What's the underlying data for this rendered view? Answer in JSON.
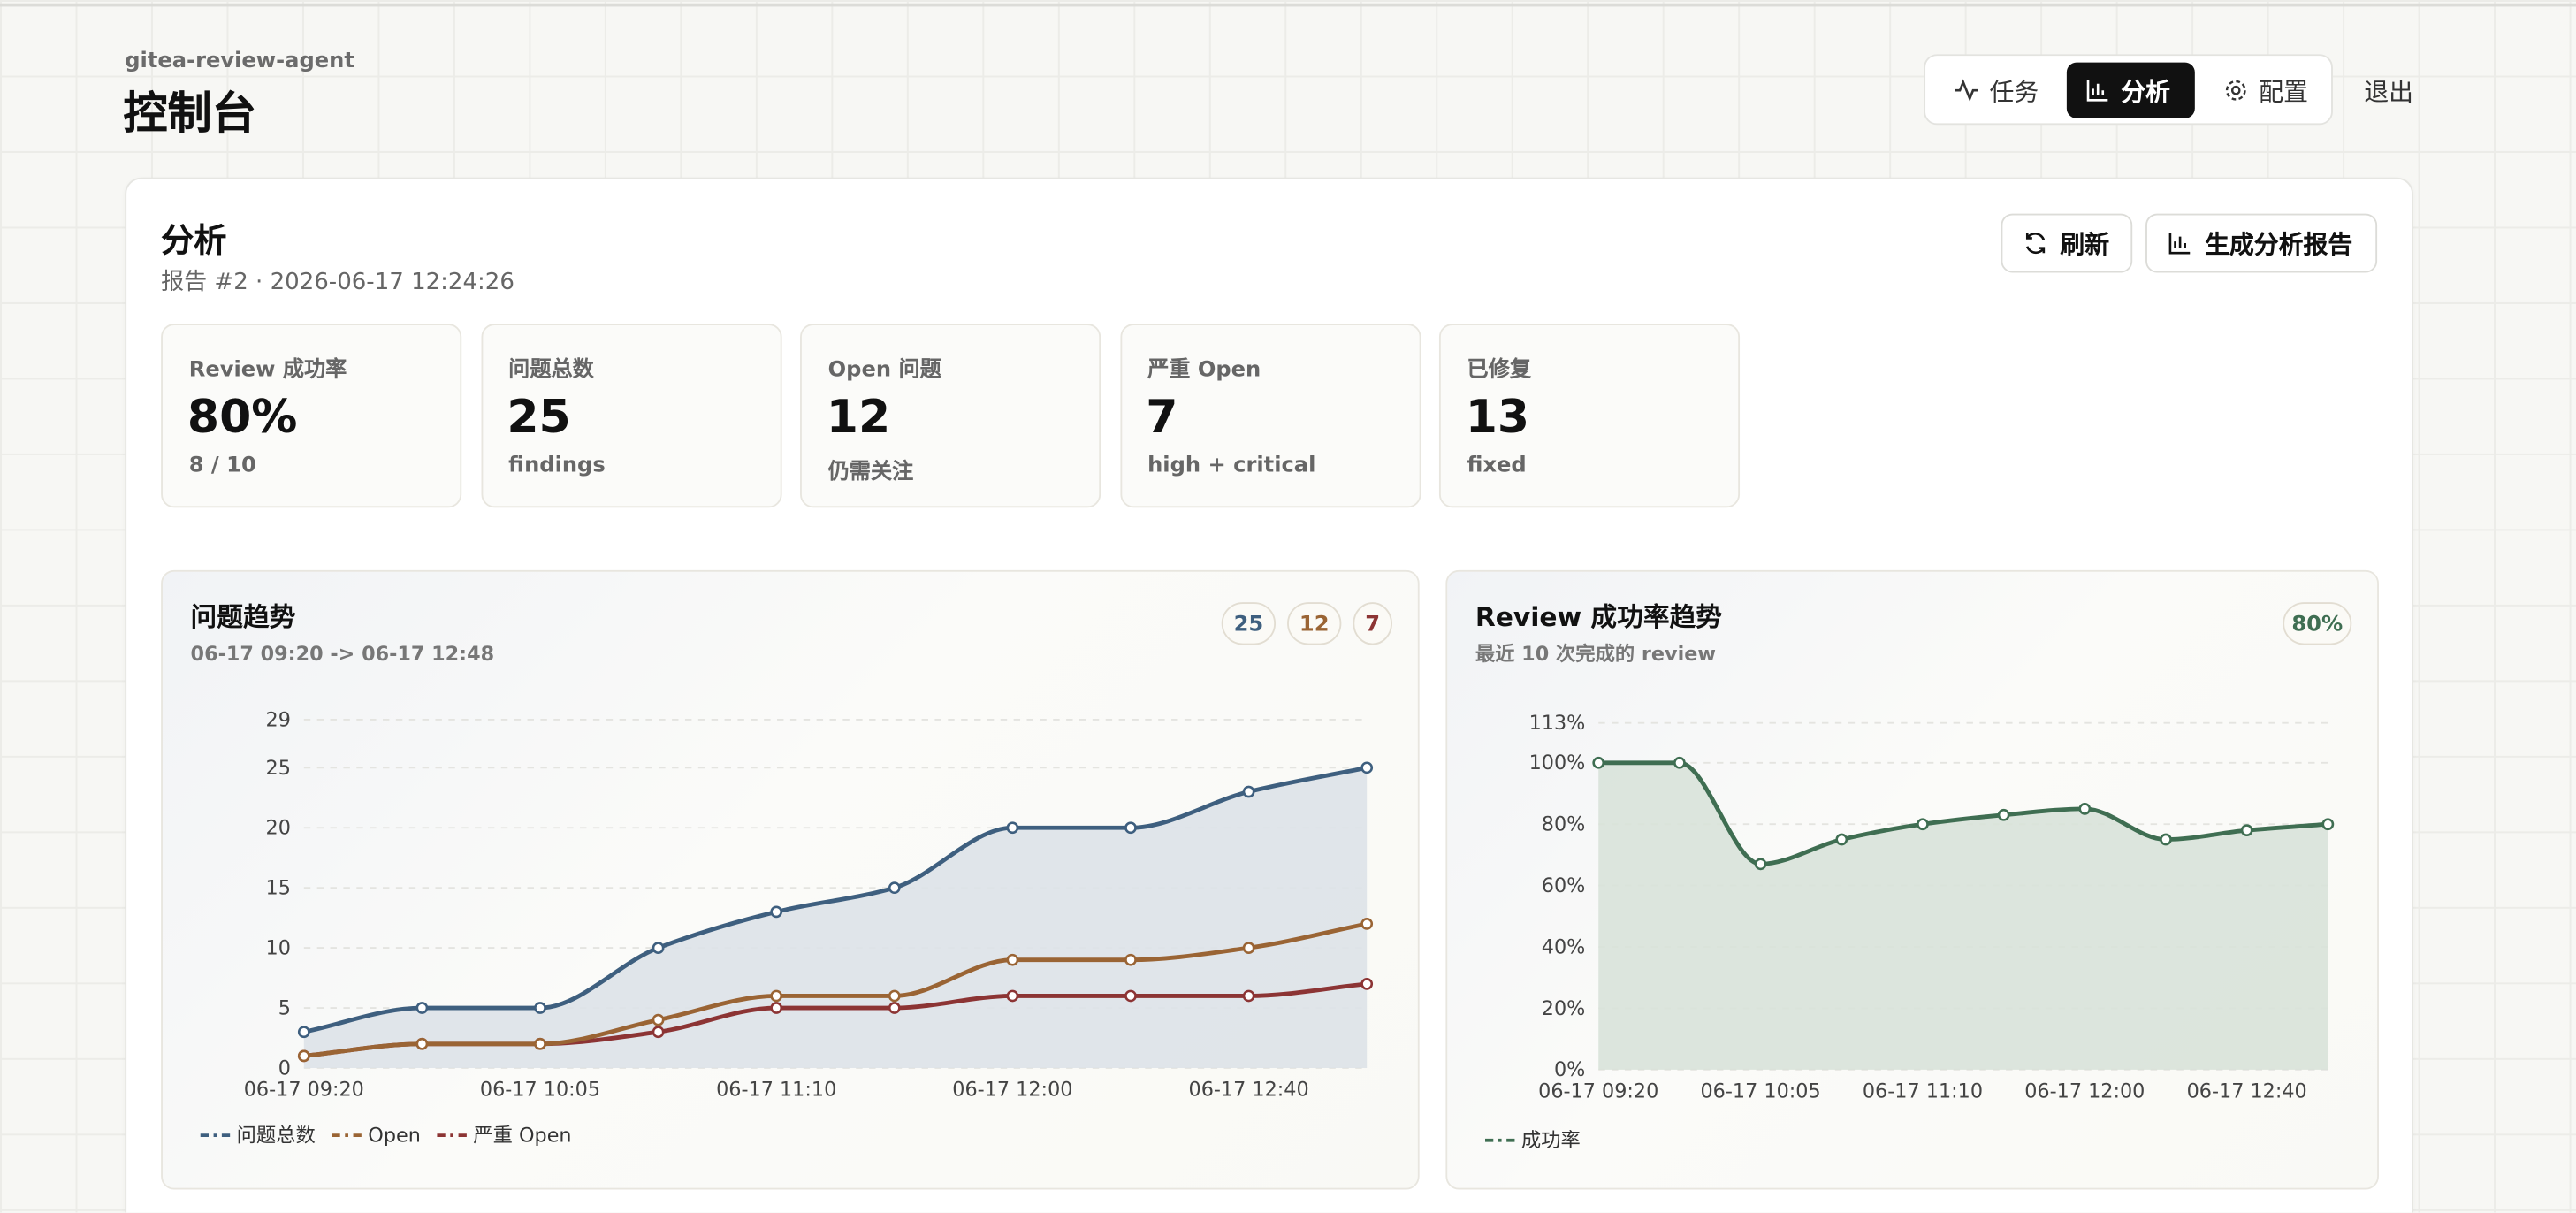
{
  "app": {
    "name": "gitea-review-agent",
    "title": "控制台"
  },
  "nav": {
    "items": [
      "任务",
      "分析",
      "配置"
    ],
    "active": 1,
    "logout": "退出"
  },
  "panel": {
    "title": "分析",
    "subtitle": "报告 #2 · 2026-06-17 12:24:26",
    "actions": [
      "刷新",
      "生成分析报告"
    ]
  },
  "stats": [
    {
      "label": "Review 成功率",
      "value": "80%",
      "note": "8 / 10"
    },
    {
      "label": "问题总数",
      "value": 25,
      "note": "findings"
    },
    {
      "label": "Open 问题",
      "value": 12,
      "note": "仍需关注"
    },
    {
      "label": "严重 Open",
      "value": 7,
      "note": "high + critical"
    },
    {
      "label": "已修复",
      "value": 13,
      "note": "fixed"
    }
  ],
  "chart_data": [
    {
      "type": "line",
      "title": "问题趋势",
      "subtitle": "06-17 09:20 -> 06-17 12:48",
      "badges": [
        25,
        12,
        7
      ],
      "categories": [
        "06-17 09:20",
        null,
        "06-17 10:05",
        null,
        "06-17 11:10",
        null,
        "06-17 12:00",
        null,
        "06-17 12:40",
        null
      ],
      "series": [
        {
          "name": "问题总数",
          "color": "#3e5f7f",
          "values": [
            3,
            5,
            5,
            10,
            13,
            15,
            20,
            20,
            23,
            25
          ]
        },
        {
          "name": "Open",
          "color": "#9a6434",
          "values": [
            1,
            2,
            2,
            4,
            6,
            6,
            9,
            9,
            10,
            12
          ]
        },
        {
          "name": "严重 Open",
          "color": "#8c3434",
          "values": [
            1,
            2,
            2,
            3,
            5,
            5,
            6,
            6,
            6,
            7
          ]
        }
      ],
      "ylim": [
        0,
        29
      ],
      "yticks": [
        0,
        5,
        10,
        15,
        20,
        25,
        29
      ],
      "grid": true,
      "area_color": "#dde2e8"
    },
    {
      "type": "line",
      "title": "Review 成功率趋势",
      "subtitle": "最近 10 次完成的 review",
      "badges": [
        "80%"
      ],
      "categories": [
        "06-17 09:20",
        null,
        "06-17 10:05",
        null,
        "06-17 11:10",
        null,
        "06-17 12:00",
        null,
        "06-17 12:40",
        null
      ],
      "series": [
        {
          "name": "成功率",
          "color": "#3f6e52",
          "values": [
            100,
            100,
            67,
            75,
            80,
            83,
            85,
            75,
            78,
            80
          ]
        }
      ],
      "ylim": [
        0,
        113
      ],
      "yticks": [
        {
          "value": 0,
          "label": "0%"
        },
        {
          "value": 20,
          "label": "20%"
        },
        {
          "value": 40,
          "label": "40%"
        },
        {
          "value": 60,
          "label": "60%"
        },
        {
          "value": 80,
          "label": "80%"
        },
        {
          "value": 100,
          "label": "100%"
        },
        {
          "value": 113,
          "label": "113%"
        }
      ],
      "grid": true,
      "area_color": "#d8e2d9"
    }
  ]
}
